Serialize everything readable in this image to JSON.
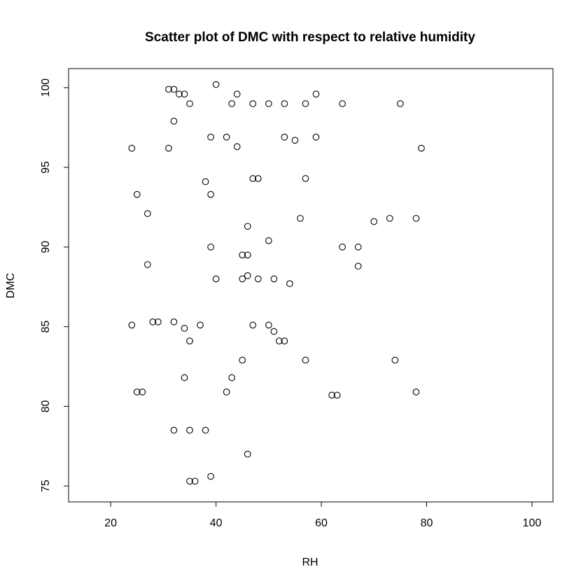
{
  "chart_data": {
    "type": "scatter",
    "title": "Scatter plot of DMC with respect to relative humidity",
    "xlabel": "RH",
    "ylabel": "DMC",
    "xlim": [
      12,
      104
    ],
    "ylim": [
      74.0,
      101.2
    ],
    "xticks": [
      20,
      40,
      60,
      80,
      100
    ],
    "yticks": [
      75,
      80,
      85,
      90,
      95,
      100
    ],
    "grid": false,
    "legend": "none",
    "points": [
      {
        "x": 31,
        "y": 99.9
      },
      {
        "x": 32,
        "y": 99.9
      },
      {
        "x": 33,
        "y": 99.6
      },
      {
        "x": 34,
        "y": 99.6
      },
      {
        "x": 35,
        "y": 99.0
      },
      {
        "x": 40,
        "y": 100.2
      },
      {
        "x": 44,
        "y": 99.6
      },
      {
        "x": 43,
        "y": 99.0
      },
      {
        "x": 47,
        "y": 99.0
      },
      {
        "x": 50,
        "y": 99.0
      },
      {
        "x": 53,
        "y": 99.0
      },
      {
        "x": 57,
        "y": 99.0
      },
      {
        "x": 59,
        "y": 99.6
      },
      {
        "x": 64,
        "y": 99.0
      },
      {
        "x": 75,
        "y": 99.0
      },
      {
        "x": 32,
        "y": 97.9
      },
      {
        "x": 39,
        "y": 96.9
      },
      {
        "x": 42,
        "y": 96.9
      },
      {
        "x": 44,
        "y": 96.3
      },
      {
        "x": 53,
        "y": 96.9
      },
      {
        "x": 55,
        "y": 96.7
      },
      {
        "x": 59,
        "y": 96.9
      },
      {
        "x": 24,
        "y": 96.2
      },
      {
        "x": 31,
        "y": 96.2
      },
      {
        "x": 79,
        "y": 96.2
      },
      {
        "x": 38,
        "y": 94.1
      },
      {
        "x": 47,
        "y": 94.3
      },
      {
        "x": 48,
        "y": 94.3
      },
      {
        "x": 57,
        "y": 94.3
      },
      {
        "x": 25,
        "y": 93.3
      },
      {
        "x": 39,
        "y": 93.3
      },
      {
        "x": 27,
        "y": 92.1
      },
      {
        "x": 46,
        "y": 91.3
      },
      {
        "x": 56,
        "y": 91.8
      },
      {
        "x": 70,
        "y": 91.6
      },
      {
        "x": 73,
        "y": 91.8
      },
      {
        "x": 78,
        "y": 91.8
      },
      {
        "x": 39,
        "y": 90.0
      },
      {
        "x": 50,
        "y": 90.4
      },
      {
        "x": 64,
        "y": 90.0
      },
      {
        "x": 67,
        "y": 90.0
      },
      {
        "x": 45,
        "y": 89.5
      },
      {
        "x": 46,
        "y": 89.5
      },
      {
        "x": 27,
        "y": 88.9
      },
      {
        "x": 67,
        "y": 88.8
      },
      {
        "x": 40,
        "y": 88.0
      },
      {
        "x": 45,
        "y": 88.0
      },
      {
        "x": 46,
        "y": 88.2
      },
      {
        "x": 48,
        "y": 88.0
      },
      {
        "x": 51,
        "y": 88.0
      },
      {
        "x": 54,
        "y": 87.7
      },
      {
        "x": 24,
        "y": 85.1
      },
      {
        "x": 28,
        "y": 85.3
      },
      {
        "x": 29,
        "y": 85.3
      },
      {
        "x": 32,
        "y": 85.3
      },
      {
        "x": 34,
        "y": 84.9
      },
      {
        "x": 37,
        "y": 85.1
      },
      {
        "x": 35,
        "y": 84.1
      },
      {
        "x": 47,
        "y": 85.1
      },
      {
        "x": 50,
        "y": 85.1
      },
      {
        "x": 51,
        "y": 84.7
      },
      {
        "x": 52,
        "y": 84.1
      },
      {
        "x": 53,
        "y": 84.1
      },
      {
        "x": 45,
        "y": 82.9
      },
      {
        "x": 57,
        "y": 82.9
      },
      {
        "x": 74,
        "y": 82.9
      },
      {
        "x": 34,
        "y": 81.8
      },
      {
        "x": 43,
        "y": 81.8
      },
      {
        "x": 25,
        "y": 80.9
      },
      {
        "x": 26,
        "y": 80.9
      },
      {
        "x": 42,
        "y": 80.9
      },
      {
        "x": 62,
        "y": 80.7
      },
      {
        "x": 63,
        "y": 80.7
      },
      {
        "x": 78,
        "y": 80.9
      },
      {
        "x": 32,
        "y": 78.5
      },
      {
        "x": 35,
        "y": 78.5
      },
      {
        "x": 38,
        "y": 78.5
      },
      {
        "x": 46,
        "y": 77.0
      },
      {
        "x": 35,
        "y": 75.3
      },
      {
        "x": 36,
        "y": 75.3
      },
      {
        "x": 39,
        "y": 75.6
      }
    ]
  }
}
